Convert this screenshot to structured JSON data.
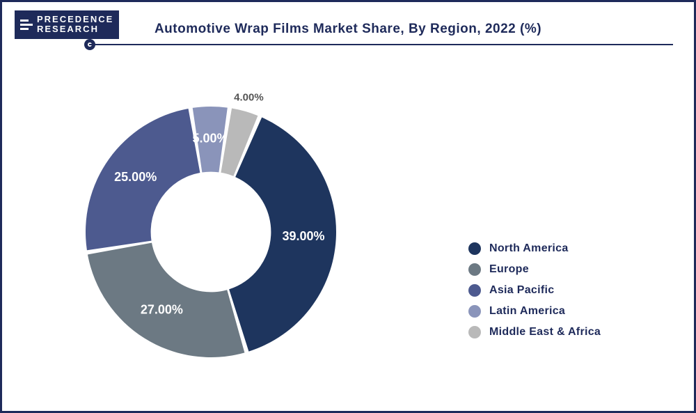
{
  "logo": {
    "line1": "PRECEDENCE",
    "line2": "RESEARCH"
  },
  "title": "Automotive Wrap Films Market Share, By Region, 2022 (%)",
  "chart": {
    "type": "donut",
    "background_color": "#ffffff",
    "border_color": "#1e2a5a",
    "inner_radius_ratio": 0.48,
    "outer_radius": 180,
    "start_angle_deg": 23,
    "direction": "clockwise",
    "label_fontsize": 18,
    "label_fontweight": "bold",
    "label_color_light": "#ffffff",
    "label_color_dark": "#555555",
    "slices": [
      {
        "region": "North America",
        "value": 39.0,
        "color": "#1e355e",
        "label": "39.00%",
        "label_on_slice": true
      },
      {
        "region": "Europe",
        "value": 27.0,
        "color": "#6c7983",
        "label": "27.00%",
        "label_on_slice": true
      },
      {
        "region": "Asia Pacific",
        "value": 25.0,
        "color": "#4d5a8f",
        "label": "25.00%",
        "label_on_slice": true
      },
      {
        "region": "Latin America",
        "value": 5.0,
        "color": "#8a94ba",
        "label": "5.00%",
        "label_on_slice": true
      },
      {
        "region": "Middle East & Africa",
        "value": 4.0,
        "color": "#b9b9b9",
        "label": "4.00%",
        "label_on_slice": false
      }
    ]
  },
  "legend": {
    "fontsize": 16,
    "fontweight": "bold",
    "color": "#1e2a5a",
    "items": [
      {
        "label": "North America",
        "color": "#1e355e"
      },
      {
        "label": "Europe",
        "color": "#6c7983"
      },
      {
        "label": "Asia Pacific",
        "color": "#4d5a8f"
      },
      {
        "label": "Latin America",
        "color": "#8a94ba"
      },
      {
        "label": "Middle East & Africa",
        "color": "#b9b9b9"
      }
    ]
  }
}
